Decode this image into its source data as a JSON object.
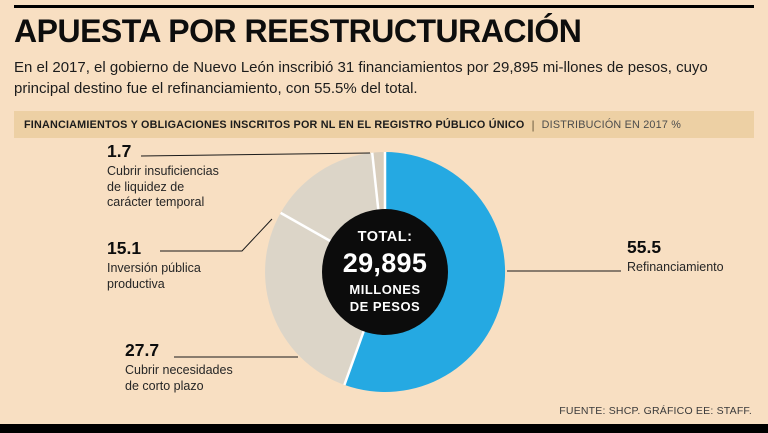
{
  "header": {
    "title": "APUESTA POR REESTRUCTURACIÓN",
    "intro_lines": [
      "En el 2017, el gobierno de Nuevo León inscribió 31 financiamientos por 29,895 mi-llones de pesos, cuyo",
      "principal destino fue el refinanciamiento, con 55.5% del total."
    ]
  },
  "band": {
    "title": "FINANCIAMIENTOS Y OBLIGACIONES INSCRITOS  POR NL EN EL REGISTRO PÚBLICO ÚNICO",
    "divider": "|",
    "subtitle": "DISTRIBUCIÓN EN 2017 %"
  },
  "chart_data": {
    "type": "pie",
    "title": "FINANCIAMIENTOS Y OBLIGACIONES INSCRITOS POR NL EN EL REGISTRO PÚBLICO ÚNICO — DISTRIBUCIÓN EN 2017 %",
    "unit": "%",
    "start_angle": 0,
    "total_label": {
      "prefix": "TOTAL:",
      "value": "29,895",
      "unit_line1": "MILLONES",
      "unit_line2": "DE PESOS"
    },
    "slices": [
      {
        "name": "Refinanciamiento",
        "value": 55.5,
        "color": "#25a9e2"
      },
      {
        "name": "Cubrir necesidades de corto plazo",
        "value": 27.7,
        "color": "#dcd5c8"
      },
      {
        "name": "Inversión pública productiva",
        "value": 15.1,
        "color": "#dcd5c8"
      },
      {
        "name": "Cubrir insuficiencias de liquidez de carácter temporal",
        "value": 1.7,
        "color": "#d8cdbc"
      }
    ],
    "colors": {
      "highlight": "#25a9e2",
      "muted": "#dcd5c8",
      "center_disc": "#0c0c0c",
      "background": "#f8dfc2",
      "band": "#edd0a4"
    },
    "legend_position": "callout-labels"
  },
  "labels": {
    "left": [
      {
        "value": "1.7",
        "lines": [
          "Cubrir insuficiencias",
          "de liquidez de",
          "carácter temporal"
        ]
      },
      {
        "value": "15.1",
        "lines": [
          "Inversión pública",
          "productiva",
          ""
        ]
      },
      {
        "value": "27.7",
        "lines": [
          "Cubrir necesidades",
          "de corto plazo",
          ""
        ]
      }
    ],
    "right": {
      "value": "55.5",
      "label": "Refinanciamiento"
    }
  },
  "footer": {
    "source": "FUENTE: SHCP.  GRÁFICO EE: STAFF."
  }
}
